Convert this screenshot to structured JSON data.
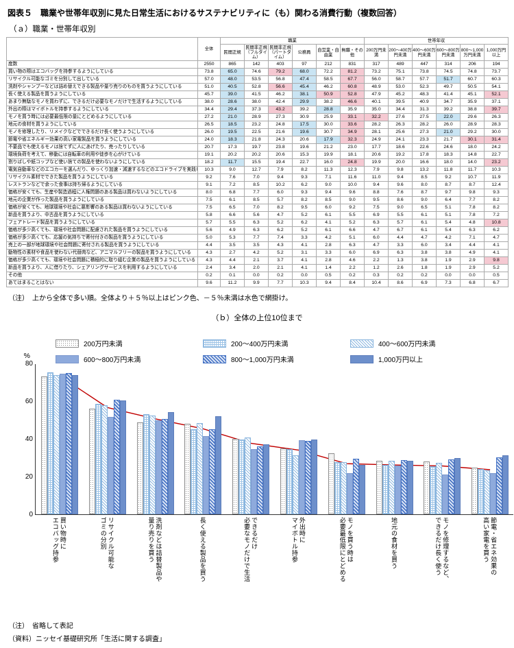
{
  "page": {
    "title": "図表５　職業や世帯年収別に見た日常生活におけるサステナビリティに（も）関わる消費行動（複数回答）",
    "section_a_title": "（ａ）職業・世帯年収別",
    "section_b_title": "（ｂ）全体の上位10位まで",
    "table_note": "（注）　上から全体で多い順。全体より＋５％以上はピンク色、－５％未満は水色で網掛け。",
    "footer_note": "（注）　省略して表記",
    "footer_source": "（資料）ニッセイ基礎研究所「生活に関する調査」"
  },
  "colors": {
    "highlight_pink": "#F5C9D2",
    "highlight_blue": "#C9E4F3",
    "total_line": "#C00000",
    "axis": "#333333"
  },
  "table": {
    "corner_label": "",
    "total_label": "全体",
    "group_headers": [
      {
        "label": "職業",
        "span": 6
      },
      {
        "label": "世帯年収",
        "span": 6
      }
    ],
    "columns": [
      "民間正規",
      "民間非正規（フルタイム）",
      "民間非正規（パートタイム）",
      "公務員",
      "自営業・自由業",
      "無職・その他",
      "200万円未満",
      "200～400万円未満",
      "400～600万円未満",
      "600～800万円未満",
      "800～1,000万円未満",
      "1,000万円以上"
    ],
    "freq_label": "度数",
    "freq_values": [
      2550,
      865,
      142,
      403,
      97,
      212,
      831,
      317,
      489,
      447,
      314,
      206,
      194
    ],
    "highlight_rule": {
      "pink_if_diff_at_least": 5,
      "blue_if_diff_at_most": -5
    },
    "rows": [
      {
        "label": "買い物の際はエコバッグを持参するようにしている",
        "values": [
          73.8,
          65.0,
          74.6,
          79.2,
          68.0,
          72.2,
          81.2,
          73.2,
          75.1,
          73.8,
          74.5,
          74.8,
          73.7
        ]
      },
      {
        "label": "リサイクル可能なゴミを分別して出している",
        "values": [
          57.0,
          48.0,
          53.5,
          56.8,
          47.4,
          58.5,
          67.7,
          56.0,
          58.7,
          57.7,
          51.7,
          60.7,
          60.3
        ]
      },
      {
        "label": "洗剤やシャンプーなどは詰め替えできる製品や量り売りのものを買うようにしている",
        "values": [
          51.0,
          40.5,
          52.8,
          56.6,
          45.4,
          46.2,
          60.8,
          48.9,
          53.0,
          52.3,
          49.7,
          50.5,
          54.1
        ]
      },
      {
        "label": "長く使える製品を買うようにしている",
        "values": [
          45.7,
          39.0,
          41.5,
          46.2,
          38.1,
          50.9,
          52.8,
          47.9,
          45.2,
          48.3,
          41.4,
          45.1,
          52.1
        ]
      },
      {
        "label": "あまり無駄なモノを買わずに、できるだけ必要なモノだけで生活するようにしている",
        "values": [
          38.0,
          28.6,
          38.0,
          42.4,
          29.9,
          38.2,
          46.6,
          40.1,
          39.5,
          40.9,
          34.7,
          35.9,
          37.1
        ]
      },
      {
        "label": "外出の際はマイボトルを持参するようにしている",
        "values": [
          34.4,
          29.4,
          37.3,
          43.2,
          39.2,
          28.8,
          35.9,
          35.0,
          34.4,
          31.3,
          39.2,
          38.8,
          39.7
        ]
      },
      {
        "label": "モノを買う時には必要最低限の量にとどめるようにしている",
        "values": [
          27.2,
          21.0,
          28.9,
          27.3,
          30.9,
          25.9,
          33.1,
          32.2,
          27.6,
          27.5,
          22.0,
          29.6,
          26.3
        ]
      },
      {
        "label": "地元の食材を買うようにしている",
        "values": [
          26.5,
          18.5,
          23.2,
          24.8,
          17.5,
          30.0,
          33.6,
          28.2,
          26.3,
          28.2,
          26.0,
          28.9,
          28.3
        ]
      },
      {
        "label": "モノを修理したり、リメイクなどでできるだけ長く使うようにしている",
        "values": [
          26.0,
          19.5,
          22.5,
          21.6,
          19.6,
          30.7,
          34.9,
          28.1,
          25.6,
          27.3,
          21.0,
          29.2,
          30.0
        ]
      },
      {
        "label": "節電や省エネルギー効果の高い家電製品を買うようにしている",
        "values": [
          24.0,
          18.3,
          21.8,
          24.3,
          20.6,
          17.9,
          32.3,
          24.9,
          24.1,
          23.3,
          21.7,
          30.1,
          31.4
        ]
      },
      {
        "label": "不要品でも使えるモノは捨てずに人にあげたり、売ったりしている",
        "values": [
          20.7,
          17.3,
          19.7,
          23.8,
          19.6,
          21.2,
          23.0,
          17.7,
          18.6,
          22.6,
          24.6,
          18.0,
          24.2
        ]
      },
      {
        "label": "環境負荷を考えて、移動には自転車の利用や徒歩を心がけている",
        "values": [
          19.1,
          20.2,
          20.2,
          20.6,
          15.3,
          19.9,
          18.1,
          20.6,
          19.2,
          17.8,
          18.3,
          14.8,
          22.7
        ]
      },
      {
        "label": "割りばしや紙コップなど使い捨ての製品を使わないようにしている",
        "values": [
          18.2,
          11.7,
          15.5,
          19.4,
          22.7,
          16.0,
          24.8,
          19.9,
          20.0,
          16.6,
          18.0,
          14.0,
          23.2
        ]
      },
      {
        "label": "電気自動車などのエコカーを選んだり、ゆっくり加速・減速するなどのエコドライブを実践している",
        "values": [
          10.3,
          9.0,
          12.7,
          7.9,
          8.2,
          11.3,
          12.3,
          7.9,
          9.8,
          13.2,
          11.8,
          11.7,
          10.3
        ]
      },
      {
        "label": "リサイクル素材でできた製品を買うようにしている",
        "values": [
          9.2,
          7.6,
          7.0,
          9.4,
          9.3,
          7.1,
          11.6,
          11.0,
          9.4,
          8.5,
          9.2,
          10.7,
          11.9
        ]
      },
      {
        "label": "レストランなどで余った食事は持ち帰るようにしている",
        "values": [
          9.1,
          7.2,
          8.5,
          10.2,
          6.2,
          9.0,
          10.0,
          9.4,
          9.6,
          8.0,
          8.7,
          8.7,
          12.4
        ]
      },
      {
        "label": "価格が安くても、生産や製造過程に人権問題のある製品は買わないようにしている",
        "values": [
          8.0,
          6.8,
          7.7,
          6.0,
          9.3,
          9.4,
          9.6,
          8.8,
          7.6,
          8.7,
          9.7,
          9.8,
          9.3
        ]
      },
      {
        "label": "地元の企業が作った製品を買うようにしている",
        "values": [
          7.5,
          6.1,
          8.5,
          5.7,
          8.2,
          8.5,
          9.0,
          9.5,
          8.6,
          9.0,
          6.4,
          7.7,
          8.2
        ]
      },
      {
        "label": "価格が安くても、地球環境や社会に悪影響のある製品は買わないようにしている",
        "values": [
          7.5,
          6.5,
          7.0,
          8.2,
          9.5,
          6.0,
          9.2,
          7.5,
          9.0,
          6.5,
          5.1,
          7.8,
          8.2
        ]
      },
      {
        "label": "新品を買うより、中古品を買うようにしている",
        "values": [
          5.8,
          6.6,
          5.6,
          4.7,
          5.2,
          6.1,
          5.5,
          6.9,
          5.5,
          6.1,
          5.1,
          7.8,
          7.2
        ]
      },
      {
        "label": "フェアトレード製品を買うようにしている",
        "values": [
          5.7,
          5.5,
          6.3,
          5.2,
          6.2,
          4.1,
          5.2,
          6.3,
          5.7,
          6.1,
          5.4,
          4.8,
          10.8
        ]
      },
      {
        "label": "価格が多少高くても、環境や社会問題に配慮された製品を買うようにしている",
        "values": [
          5.6,
          4.9,
          6.3,
          6.2,
          5.2,
          6.1,
          6.6,
          4.7,
          6.7,
          6.1,
          5.4,
          6.3,
          6.2
        ]
      },
      {
        "label": "価格が多少高くても、応援の気持ちで寄付付きの製品を買うようにしている",
        "values": [
          5.0,
          5.3,
          7.7,
          7.4,
          3.3,
          4.2,
          5.1,
          6.0,
          4.4,
          4.7,
          4.2,
          7.1,
          4.7
        ]
      },
      {
        "label": "売上の一部が地球環境や社会問題に寄付される製品を買うようにしている",
        "values": [
          4.4,
          3.5,
          3.5,
          4.3,
          4.1,
          2.8,
          6.3,
          4.7,
          3.3,
          6.0,
          3.4,
          4.4,
          4.1
        ]
      },
      {
        "label": "動物性の素材や食品を使わない代替肉など、アニマルフリーの製品を買うようにしている",
        "values": [
          4.3,
          2.7,
          4.2,
          5.2,
          3.1,
          3.3,
          6.0,
          6.9,
          6.3,
          3.8,
          3.8,
          4.9,
          4.1
        ]
      },
      {
        "label": "価格が多少高くても、環境や社会問題に積極的に取り組む企業の製品を買うようにしている",
        "values": [
          4.3,
          4.4,
          2.1,
          3.7,
          4.1,
          2.8,
          4.6,
          2.2,
          1.3,
          3.8,
          1.9,
          2.9,
          9.8
        ]
      },
      {
        "label": "新品を買うより、人に借りたり、シェアリングサービスを利用するようにしている",
        "values": [
          2.4,
          3.4,
          2.0,
          2.1,
          4.1,
          1.4,
          2.2,
          1.2,
          2.6,
          1.8,
          1.9,
          2.9,
          5.2
        ]
      },
      {
        "label": "その他",
        "values": [
          0.2,
          0.1,
          0.0,
          0.2,
          0.0,
          0.5,
          0.2,
          0.3,
          0.2,
          0.2,
          0.0,
          0.0,
          0.5
        ]
      },
      {
        "label": "あてはまることはない",
        "values": [
          9.6,
          11.2,
          9.9,
          7.7,
          10.3,
          9.4,
          8.4,
          10.4,
          8.6,
          6.9,
          7.3,
          6.8,
          6.7
        ]
      }
    ]
  },
  "chart_data": {
    "type": "bar",
    "title": "（ｂ）全体の上位10位まで",
    "ylabel": "%",
    "ylim": [
      0,
      80
    ],
    "yticks": [
      0,
      20,
      40,
      60,
      80
    ],
    "grid": false,
    "legend_position": "top",
    "categories": [
      "買い物時に\nエコバッグ持参",
      "リサイクル可能な\nゴミの分別",
      "洗剤などは詰替製品や\n量り売りを買う",
      "長く使える製品を買う",
      "できるだけ\n必要なモノだけで生活",
      "外出時に\nマイボトル持参",
      "モノを買う時は\n必要最低限にとどめる",
      "地元の食材を買う",
      "モノを修理するなど、\nできるだけ長く使う",
      "節電・省エネ効果の\n高い家電を買う"
    ],
    "series": [
      {
        "name": "200万円未満",
        "pattern": "dots",
        "color": "#FFFFFF",
        "values": [
          73.2,
          56.0,
          48.9,
          47.9,
          40.1,
          35.0,
          32.2,
          28.2,
          28.1,
          24.9
        ]
      },
      {
        "name": "200～400万円未満",
        "pattern": "grid",
        "color": "#BDD7EE",
        "values": [
          75.1,
          58.7,
          53.0,
          45.2,
          39.5,
          34.4,
          27.6,
          26.3,
          25.6,
          24.1
        ]
      },
      {
        "name": "400～600万円未満",
        "pattern": "diag",
        "color": "#9DC3E6",
        "values": [
          73.8,
          57.7,
          52.3,
          48.3,
          40.9,
          31.3,
          27.5,
          28.2,
          27.3,
          23.3
        ]
      },
      {
        "name": "600～800万円未満",
        "pattern": "solid",
        "color": "#8EAADC",
        "values": [
          74.5,
          51.7,
          49.7,
          41.4,
          34.7,
          39.2,
          22.0,
          26.0,
          21.0,
          21.7
        ]
      },
      {
        "name": "800～1,000万円未満",
        "pattern": "diag-dark",
        "color": "#4472C4",
        "values": [
          74.8,
          60.7,
          50.5,
          45.1,
          35.9,
          38.8,
          29.6,
          28.9,
          29.2,
          30.1
        ]
      },
      {
        "name": "1,000万円以上",
        "pattern": "solid-dark",
        "color": "#6D8FCB",
        "values": [
          73.7,
          60.3,
          54.1,
          52.1,
          37.1,
          39.7,
          26.3,
          28.3,
          30.0,
          31.4
        ]
      }
    ],
    "line_series": {
      "name": "全体",
      "color": "#C00000",
      "values": [
        73.8,
        57.0,
        51.0,
        45.7,
        38.0,
        34.4,
        27.2,
        26.5,
        26.0,
        24.0
      ]
    }
  }
}
